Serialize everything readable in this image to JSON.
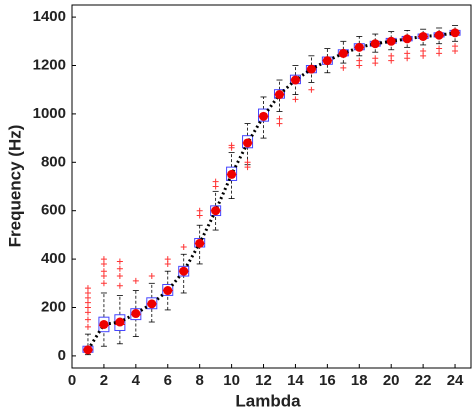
{
  "chart_data": {
    "type": "box",
    "x_label": "Lambda",
    "y_label": "Frequency (Hz)",
    "x": [
      1,
      2,
      3,
      4,
      5,
      6,
      7,
      8,
      9,
      10,
      11,
      12,
      13,
      14,
      15,
      16,
      17,
      18,
      19,
      20,
      21,
      22,
      23,
      24
    ],
    "whisker_low": [
      5,
      40,
      50,
      80,
      140,
      190,
      260,
      380,
      520,
      650,
      790,
      900,
      1010,
      1080,
      1130,
      1170,
      1210,
      1240,
      1255,
      1265,
      1275,
      1285,
      1290,
      1300
    ],
    "q1": [
      15,
      100,
      105,
      150,
      195,
      250,
      330,
      450,
      580,
      725,
      860,
      970,
      1065,
      1125,
      1170,
      1205,
      1240,
      1265,
      1280,
      1292,
      1302,
      1312,
      1318,
      1325
    ],
    "median": [
      25,
      125,
      130,
      170,
      215,
      270,
      350,
      465,
      600,
      750,
      880,
      990,
      1080,
      1140,
      1185,
      1220,
      1250,
      1275,
      1290,
      1300,
      1310,
      1320,
      1325,
      1335
    ],
    "q3": [
      40,
      160,
      170,
      195,
      240,
      295,
      370,
      485,
      620,
      780,
      910,
      1020,
      1100,
      1160,
      1200,
      1235,
      1265,
      1290,
      1300,
      1312,
      1320,
      1330,
      1335,
      1345
    ],
    "whisker_high": [
      90,
      260,
      250,
      270,
      300,
      350,
      420,
      540,
      680,
      840,
      960,
      1070,
      1140,
      1200,
      1240,
      1270,
      1300,
      1320,
      1330,
      1340,
      1345,
      1350,
      1355,
      1365
    ],
    "means": [
      25,
      130,
      140,
      175,
      215,
      270,
      350,
      465,
      600,
      750,
      880,
      990,
      1080,
      1140,
      1185,
      1220,
      1250,
      1275,
      1290,
      1300,
      1310,
      1320,
      1325,
      1335
    ],
    "outliers": [
      [
        120,
        150,
        180,
        200,
        220,
        240,
        260,
        280
      ],
      [
        300,
        330,
        350,
        380,
        400
      ],
      [
        290,
        330,
        360,
        390
      ],
      [
        310
      ],
      [
        330
      ],
      [
        380,
        400
      ],
      [
        450
      ],
      [
        580,
        600
      ],
      [
        700,
        720
      ],
      [
        860,
        870
      ],
      [
        780,
        800
      ],
      [],
      [
        960,
        980
      ],
      [
        1060
      ],
      [
        1100
      ],
      [],
      [
        1190
      ],
      [
        1200,
        1220
      ],
      [
        1210,
        1230
      ],
      [
        1220,
        1240
      ],
      [
        1230,
        1250
      ],
      [
        1240,
        1260
      ],
      [
        1250,
        1270
      ],
      [
        1260,
        1280
      ]
    ],
    "box_color": "#4444ff",
    "median_color": "#ff0000",
    "whisker_color": "#000000",
    "mean_color": "#ee0000",
    "line_color": "#000000",
    "outlier_color": "#ff3333",
    "xlim": [
      0,
      25
    ],
    "ylim": [
      -50,
      1450
    ],
    "xticks": [
      0,
      2,
      4,
      6,
      8,
      10,
      12,
      14,
      16,
      18,
      20,
      22,
      24
    ],
    "yticks": [
      0,
      200,
      400,
      600,
      800,
      1000,
      1200,
      1400
    ]
  }
}
